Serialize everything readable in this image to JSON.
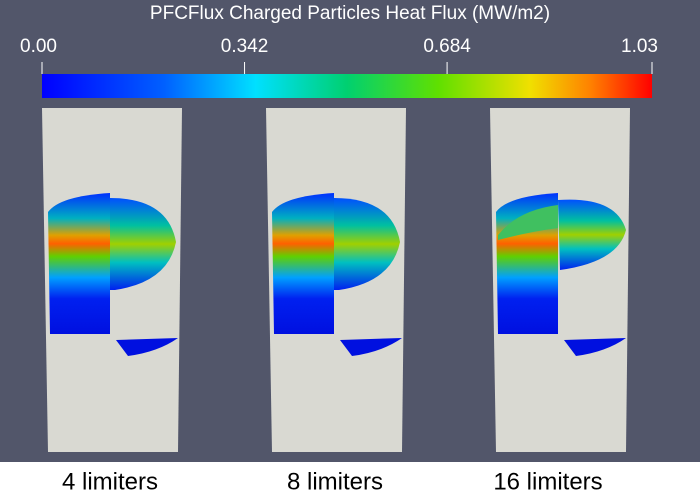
{
  "colorbar": {
    "title": "PFCFlux Charged Particles Heat Flux (MW/m2)",
    "range": [
      0,
      1.03
    ],
    "ticks": [
      {
        "value": 0,
        "label": "0.00"
      },
      0.342,
      0.684,
      {
        "value": 1.03,
        "label": "1.03"
      }
    ]
  },
  "panels": [
    {
      "label": "4 limiters"
    },
    {
      "label": "8 limiters"
    },
    {
      "label": "16 limiters"
    }
  ]
}
